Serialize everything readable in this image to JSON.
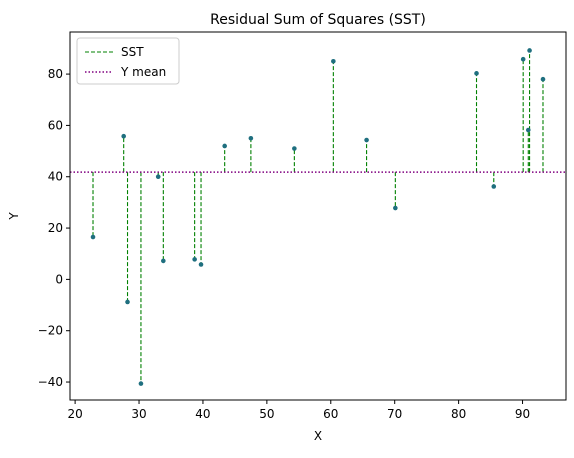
{
  "chart_data": {
    "type": "scatter",
    "title": "Residual Sum of Squares (SST)",
    "xlabel": "X",
    "ylabel": "Y",
    "xlim": [
      19.2,
      96.8
    ],
    "ylim": [
      -47.0,
      96.4
    ],
    "x_ticks": [
      20,
      30,
      40,
      50,
      60,
      70,
      80,
      90
    ],
    "y_ticks": [
      -40,
      -20,
      0,
      20,
      40,
      60,
      80
    ],
    "y_mean": 41.8,
    "grid": false,
    "legend_position": "top-left",
    "legend": [
      {
        "label": "SST",
        "style": "dashed",
        "color": "#008000"
      },
      {
        "label": "Y mean",
        "style": "dotted",
        "color": "#800080"
      }
    ],
    "point_color": "#1f6f7f",
    "points": [
      {
        "x": 22.8,
        "y": 16.5
      },
      {
        "x": 27.6,
        "y": 55.8
      },
      {
        "x": 28.2,
        "y": -8.8
      },
      {
        "x": 30.3,
        "y": -40.6
      },
      {
        "x": 33.0,
        "y": 40.0
      },
      {
        "x": 33.8,
        "y": 7.2
      },
      {
        "x": 38.7,
        "y": 7.8
      },
      {
        "x": 39.7,
        "y": 5.8
      },
      {
        "x": 43.4,
        "y": 52.0
      },
      {
        "x": 47.5,
        "y": 55.0
      },
      {
        "x": 54.3,
        "y": 51.0
      },
      {
        "x": 60.4,
        "y": 85.0
      },
      {
        "x": 65.6,
        "y": 54.3
      },
      {
        "x": 70.1,
        "y": 27.8
      },
      {
        "x": 82.8,
        "y": 80.3
      },
      {
        "x": 85.5,
        "y": 36.2
      },
      {
        "x": 90.1,
        "y": 85.8
      },
      {
        "x": 90.9,
        "y": 58.2
      },
      {
        "x": 91.1,
        "y": 89.2
      },
      {
        "x": 93.2,
        "y": 78.0
      }
    ]
  }
}
